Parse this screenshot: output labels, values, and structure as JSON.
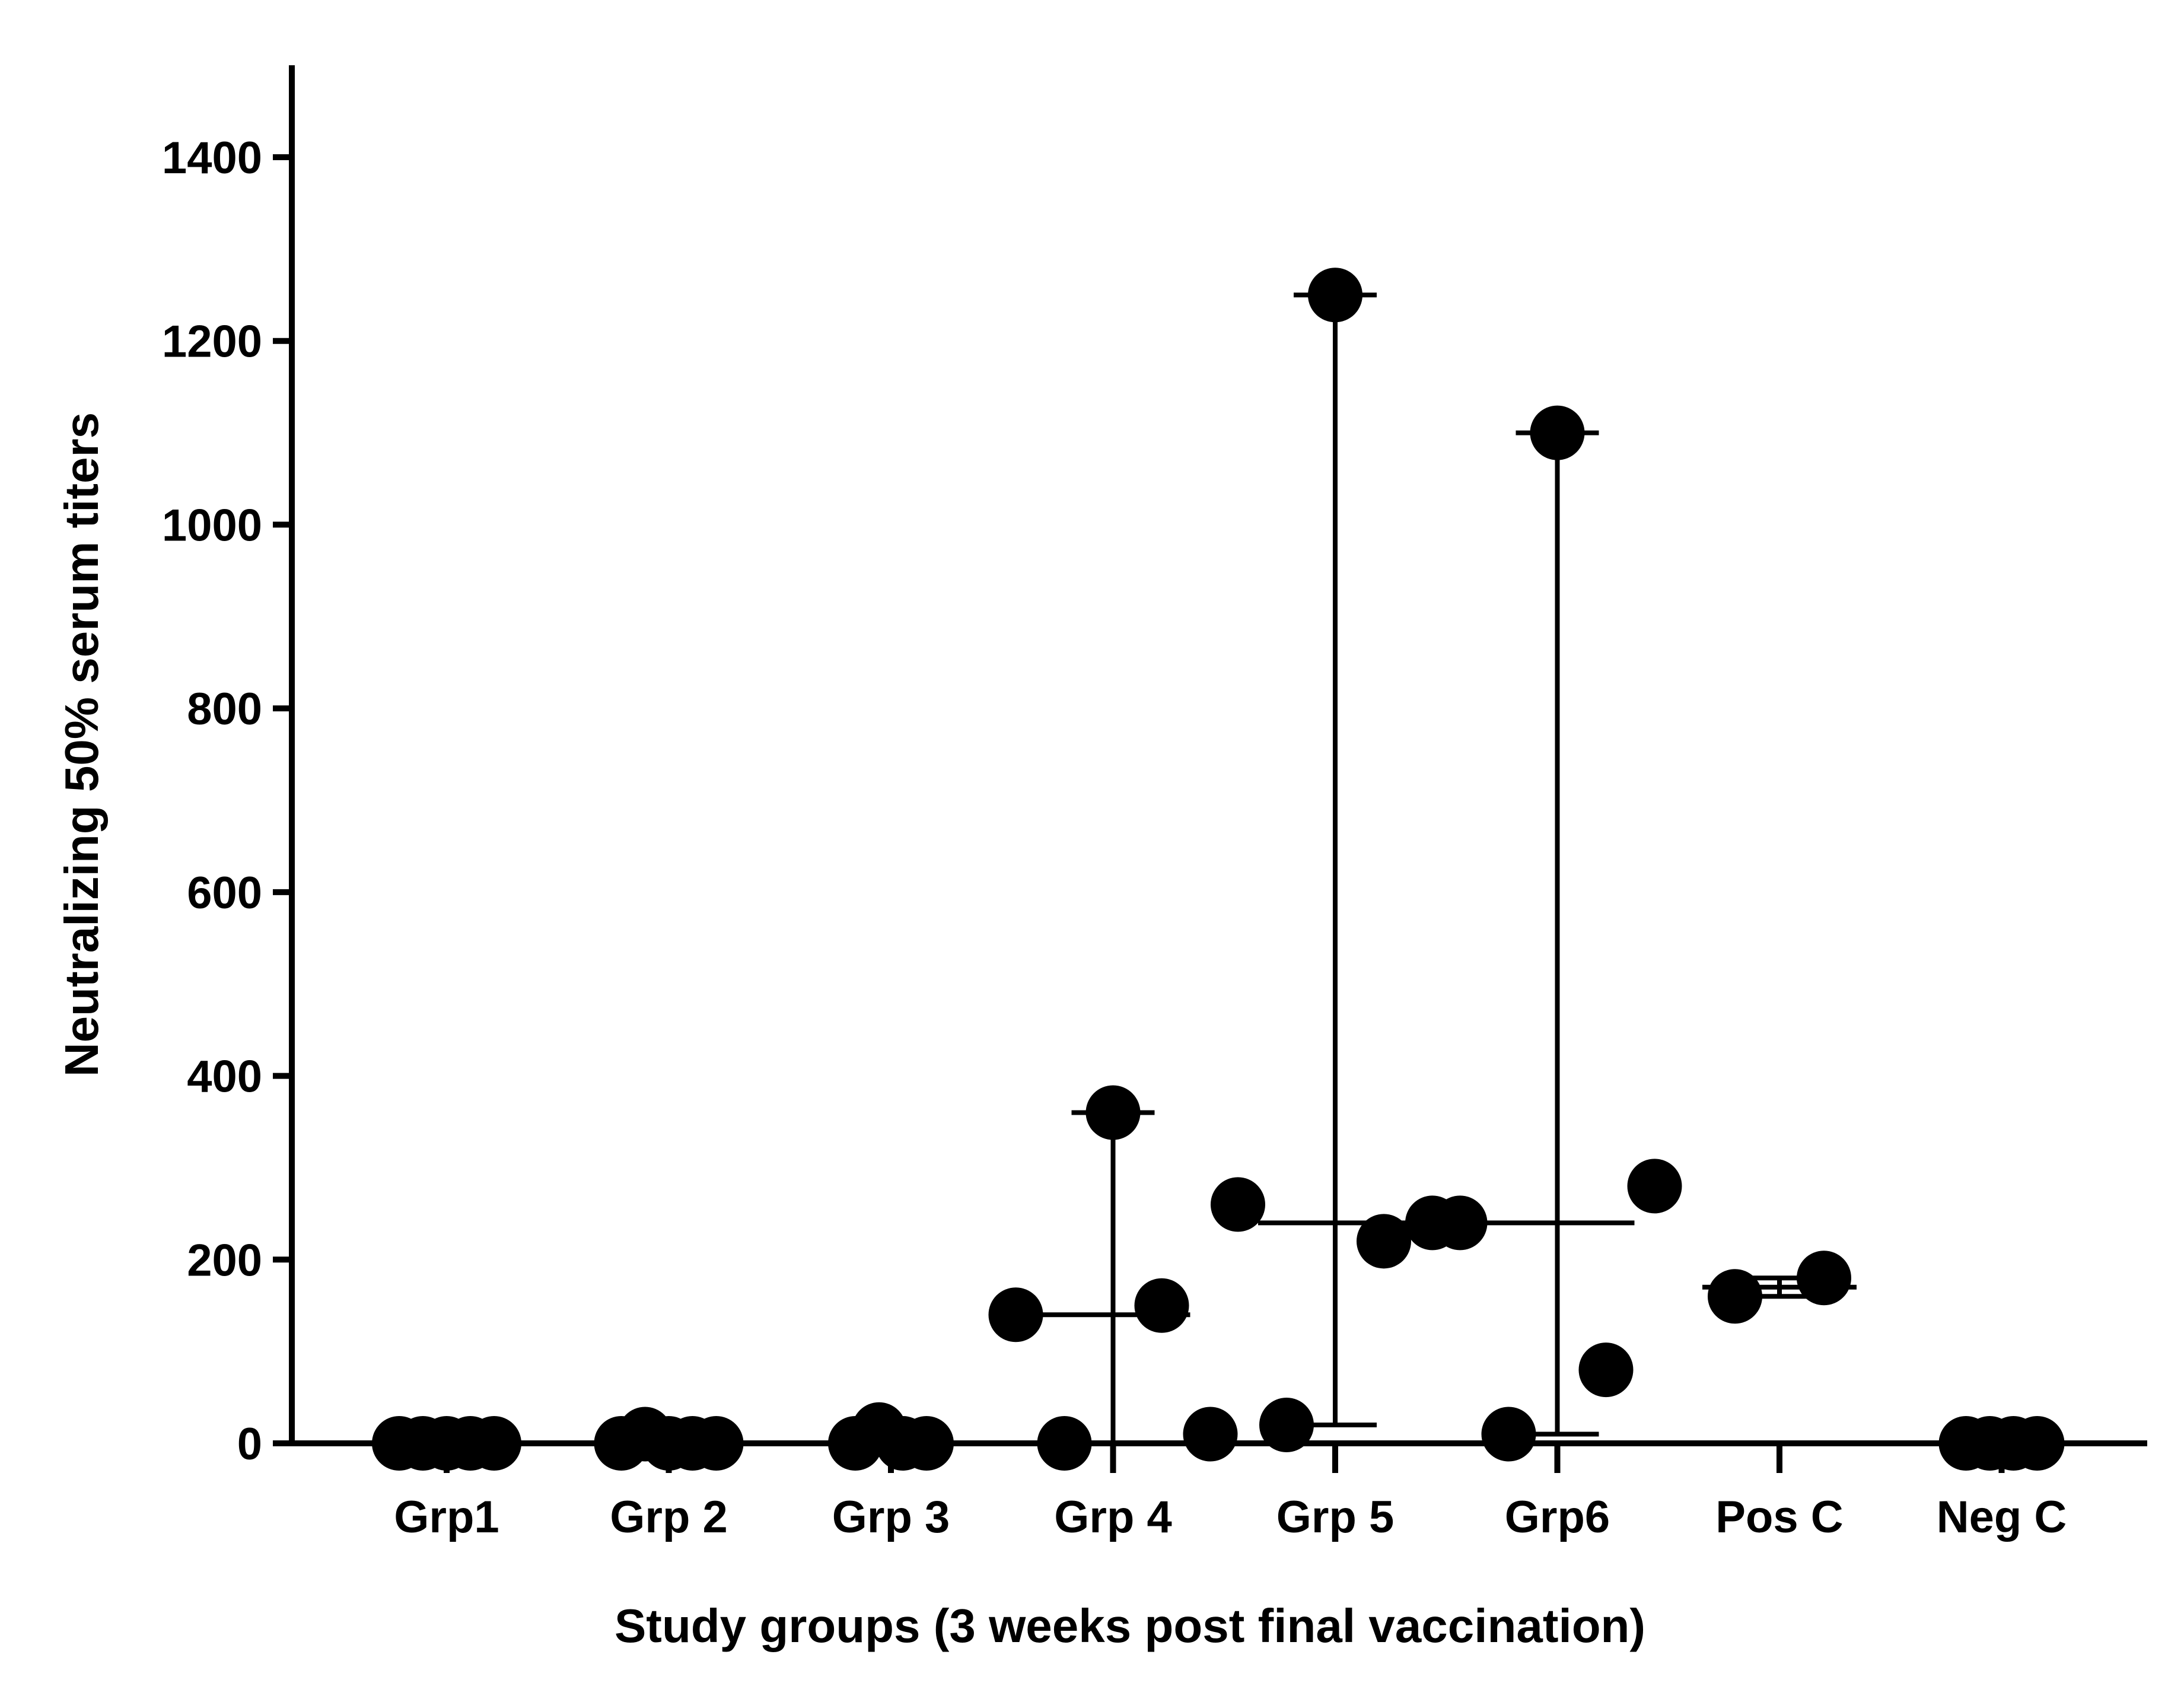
{
  "chart_data": {
    "type": "scatter",
    "title": "",
    "xlabel": "Study groups (3 weeks post final vaccination)",
    "ylabel": "Neutralizing 50% serum titers",
    "ylim": [
      0,
      1500
    ],
    "yticks": [
      0,
      200,
      400,
      600,
      800,
      1000,
      1200,
      1400
    ],
    "ytick_labels": [
      "0",
      "200",
      "400",
      "600",
      "800",
      "1000",
      "1200",
      "1400"
    ],
    "grid": false,
    "legend": "none",
    "colors": {
      "points": "#000000",
      "axis": "#000000",
      "background": "#ffffff"
    },
    "categories": [
      "Grp1",
      "Grp 2",
      "Grp 3",
      "Grp 4",
      "Grp 5",
      "Grp6",
      "Pos C",
      "Neg C"
    ],
    "groups": [
      {
        "name": "Grp1",
        "points": [
          0,
          0,
          0,
          0,
          0
        ],
        "median": 0,
        "range": [
          0,
          0
        ]
      },
      {
        "name": "Grp 2",
        "points": [
          0,
          10,
          0,
          0,
          0
        ],
        "median": 0,
        "range": [
          0,
          10
        ]
      },
      {
        "name": "Grp 3",
        "points": [
          0,
          15,
          0,
          0
        ],
        "median": 0,
        "range": [
          0,
          15
        ]
      },
      {
        "name": "Grp 4",
        "points": [
          140,
          0,
          360,
          150,
          10
        ],
        "median": 140,
        "range": [
          0,
          360
        ]
      },
      {
        "name": "Grp 5",
        "points": [
          260,
          20,
          1250,
          220,
          240
        ],
        "median": 240,
        "range": [
          20,
          1250
        ]
      },
      {
        "name": "Grp6",
        "points": [
          240,
          10,
          1100,
          80,
          280
        ],
        "median": 240,
        "range": [
          10,
          1100
        ]
      },
      {
        "name": "Pos C",
        "points": [
          160,
          180
        ],
        "median": 170,
        "range": [
          160,
          180
        ]
      },
      {
        "name": "Neg C",
        "points": [
          0,
          0,
          0,
          0
        ],
        "median": 0,
        "range": [
          0,
          0
        ]
      }
    ]
  }
}
